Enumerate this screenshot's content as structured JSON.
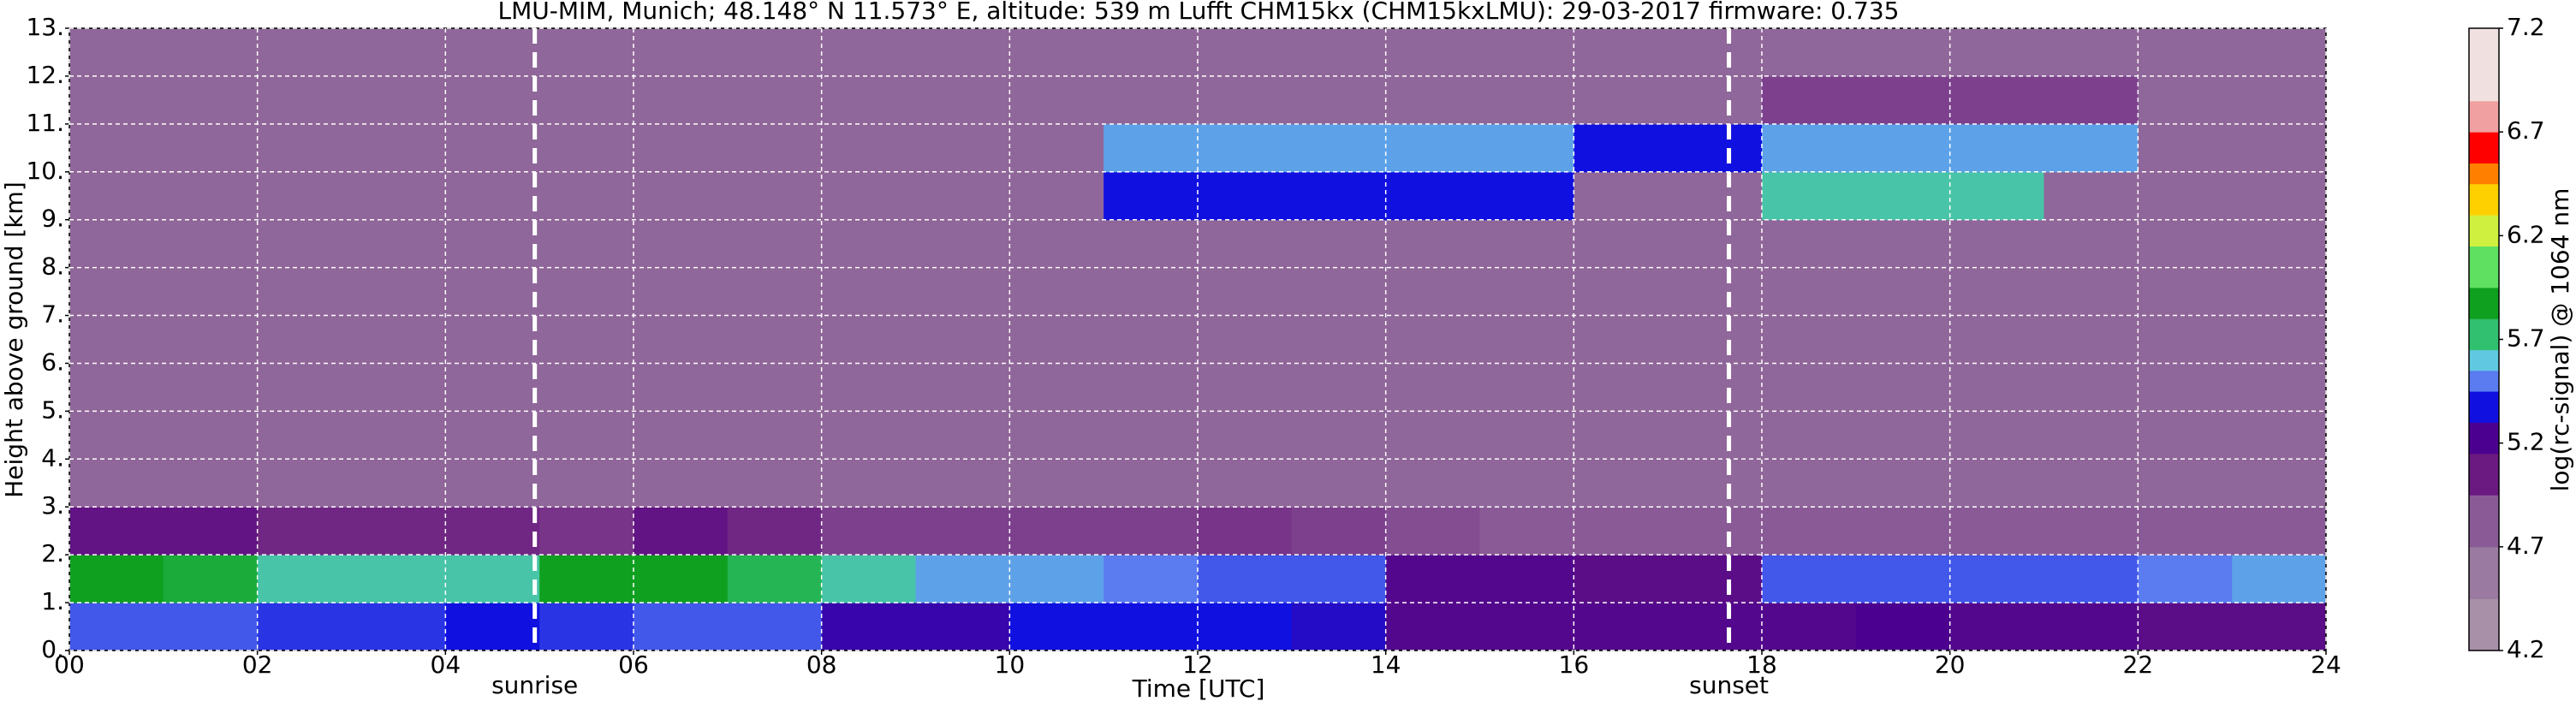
{
  "chart_data": {
    "type": "heatmap",
    "title": "LMU-MIM, Munich; 48.148° N 11.573° E, altitude: 539 m    Lufft CHM15kx (CHM15kxLMU): 29-03-2017    firmware: 0.735",
    "x_label": "Time [UTC]",
    "y_label": "Height above ground [km]",
    "colorbar_label": "log(rc-signal) @ 1064 nm",
    "x_bins": [
      0,
      1,
      2,
      3,
      4,
      5,
      6,
      7,
      8,
      9,
      10,
      11,
      12,
      13,
      14,
      15,
      16,
      17,
      18,
      19,
      20,
      21,
      22,
      23,
      24
    ],
    "y_bins": [
      0,
      1,
      2,
      3,
      4,
      5,
      6,
      7,
      8,
      9,
      10,
      11,
      12,
      13
    ],
    "values": [
      [
        5.4,
        5.4,
        5.35,
        5.35,
        5.3,
        5.35,
        5.4,
        5.4,
        5.2,
        5.2,
        5.3,
        5.3,
        5.3,
        5.25,
        5.1,
        5.1,
        5.1,
        5.1,
        5.1,
        5.15,
        5.1,
        5.1,
        5.05,
        5.05
      ],
      [
        5.8,
        5.75,
        5.6,
        5.6,
        5.6,
        5.8,
        5.8,
        5.7,
        5.6,
        5.5,
        5.5,
        5.45,
        5.4,
        5.4,
        5.1,
        5.1,
        5.05,
        5.05,
        5.4,
        5.4,
        5.4,
        5.4,
        5.45,
        5.5
      ],
      [
        5.0,
        5.0,
        4.9,
        4.9,
        4.9,
        4.85,
        5.0,
        4.9,
        4.8,
        4.8,
        4.8,
        4.8,
        4.85,
        4.8,
        4.75,
        4.7,
        4.7,
        4.7,
        4.7,
        4.7,
        4.7,
        4.7,
        4.7,
        4.7
      ],
      [
        4.6,
        4.6,
        4.6,
        4.6,
        4.6,
        4.6,
        4.6,
        4.6,
        4.6,
        4.6,
        4.6,
        4.6,
        4.6,
        4.6,
        4.6,
        4.6,
        4.6,
        4.6,
        4.6,
        4.6,
        4.6,
        4.6,
        4.6,
        4.6
      ],
      [
        4.6,
        4.6,
        4.6,
        4.6,
        4.6,
        4.6,
        4.6,
        4.6,
        4.6,
        4.6,
        4.6,
        4.6,
        4.6,
        4.6,
        4.6,
        4.6,
        4.6,
        4.6,
        4.6,
        4.6,
        4.6,
        4.6,
        4.6,
        4.6
      ],
      [
        4.6,
        4.6,
        4.6,
        4.6,
        4.6,
        4.6,
        4.6,
        4.6,
        4.6,
        4.6,
        4.6,
        4.6,
        4.6,
        4.6,
        4.6,
        4.6,
        4.6,
        4.6,
        4.6,
        4.6,
        4.6,
        4.6,
        4.6,
        4.6
      ],
      [
        4.6,
        4.6,
        4.6,
        4.6,
        4.6,
        4.6,
        4.6,
        4.6,
        4.6,
        4.6,
        4.6,
        4.6,
        4.6,
        4.6,
        4.6,
        4.6,
        4.6,
        4.6,
        4.6,
        4.6,
        4.6,
        4.6,
        4.6,
        4.6
      ],
      [
        4.6,
        4.6,
        4.6,
        4.6,
        4.6,
        4.6,
        4.6,
        4.6,
        4.6,
        4.6,
        4.6,
        4.6,
        4.6,
        4.6,
        4.6,
        4.6,
        4.6,
        4.6,
        4.6,
        4.6,
        4.6,
        4.6,
        4.6,
        4.6
      ],
      [
        4.6,
        4.6,
        4.6,
        4.6,
        4.6,
        4.6,
        4.6,
        4.6,
        4.6,
        4.6,
        4.6,
        4.6,
        4.6,
        4.6,
        4.6,
        4.6,
        4.6,
        4.6,
        4.6,
        4.6,
        4.6,
        4.6,
        4.6,
        4.6
      ],
      [
        4.6,
        4.6,
        4.6,
        4.6,
        4.6,
        4.6,
        4.6,
        4.6,
        4.6,
        4.6,
        4.6,
        5.3,
        5.3,
        5.3,
        5.3,
        5.3,
        4.6,
        4.6,
        5.6,
        5.6,
        5.6,
        4.6,
        4.6,
        4.6
      ],
      [
        4.6,
        4.6,
        4.6,
        4.6,
        4.6,
        4.6,
        4.6,
        4.6,
        4.6,
        4.6,
        4.6,
        5.5,
        5.5,
        5.5,
        5.5,
        5.5,
        5.3,
        5.3,
        5.5,
        5.5,
        5.5,
        5.5,
        4.6,
        4.6
      ],
      [
        4.6,
        4.6,
        4.6,
        4.6,
        4.6,
        4.6,
        4.6,
        4.6,
        4.6,
        4.6,
        4.6,
        4.6,
        4.6,
        4.6,
        4.6,
        4.6,
        4.6,
        4.6,
        4.8,
        4.8,
        4.8,
        4.8,
        4.6,
        4.6
      ],
      [
        4.6,
        4.6,
        4.6,
        4.6,
        4.6,
        4.6,
        4.6,
        4.6,
        4.6,
        4.6,
        4.6,
        4.6,
        4.6,
        4.6,
        4.6,
        4.6,
        4.6,
        4.6,
        4.6,
        4.6,
        4.6,
        4.6,
        4.6,
        4.6
      ]
    ],
    "xlim": [
      0,
      24
    ],
    "xticks": [
      {
        "value": 0,
        "label": "00"
      },
      {
        "value": 2,
        "label": "02"
      },
      {
        "value": 4,
        "label": "04"
      },
      {
        "value": 6,
        "label": "06"
      },
      {
        "value": 8,
        "label": "08"
      },
      {
        "value": 10,
        "label": "10"
      },
      {
        "value": 12,
        "label": "12"
      },
      {
        "value": 14,
        "label": "14"
      },
      {
        "value": 16,
        "label": "16"
      },
      {
        "value": 18,
        "label": "18"
      },
      {
        "value": 20,
        "label": "20"
      },
      {
        "value": 22,
        "label": "22"
      },
      {
        "value": 24,
        "label": "24"
      }
    ],
    "ylim": [
      0,
      13
    ],
    "yticks": [
      {
        "value": 0,
        "label": "0."
      },
      {
        "value": 1,
        "label": "1."
      },
      {
        "value": 2,
        "label": "2."
      },
      {
        "value": 3,
        "label": "3."
      },
      {
        "value": 4,
        "label": "4."
      },
      {
        "value": 5,
        "label": "5."
      },
      {
        "value": 6,
        "label": "6."
      },
      {
        "value": 7,
        "label": "7."
      },
      {
        "value": 8,
        "label": "8."
      },
      {
        "value": 9,
        "label": "9."
      },
      {
        "value": 10,
        "label": "10."
      },
      {
        "value": 11,
        "label": "11."
      },
      {
        "value": 12,
        "label": "12."
      },
      {
        "value": 13,
        "label": "13."
      }
    ],
    "clim": [
      4.2,
      7.2
    ],
    "cticks": [
      4.2,
      4.7,
      5.2,
      5.7,
      6.2,
      6.7,
      7.2
    ],
    "colormap": [
      {
        "value": 4.2,
        "color": "#a890a8"
      },
      {
        "value": 4.45,
        "color": "#9a7aa0"
      },
      {
        "value": 4.7,
        "color": "#8a5a96"
      },
      {
        "value": 4.95,
        "color": "#6a1a80"
      },
      {
        "value": 5.15,
        "color": "#4b0090"
      },
      {
        "value": 5.3,
        "color": "#1010e0"
      },
      {
        "value": 5.45,
        "color": "#5a7cf0"
      },
      {
        "value": 5.55,
        "color": "#60c8e0"
      },
      {
        "value": 5.65,
        "color": "#30c070"
      },
      {
        "value": 5.8,
        "color": "#10a020"
      },
      {
        "value": 5.95,
        "color": "#60e060"
      },
      {
        "value": 6.15,
        "color": "#d0f040"
      },
      {
        "value": 6.3,
        "color": "#ffd000"
      },
      {
        "value": 6.45,
        "color": "#ff8000"
      },
      {
        "value": 6.55,
        "color": "#ff0000"
      },
      {
        "value": 6.7,
        "color": "#f0a0a0"
      },
      {
        "value": 6.85,
        "color": "#f0e0e0"
      },
      {
        "value": 7.2,
        "color": "#ffffff"
      }
    ],
    "grid": true,
    "annotations": [
      {
        "x": 4.95,
        "label": "sunrise"
      },
      {
        "x": 17.65,
        "label": "sunset"
      }
    ]
  }
}
